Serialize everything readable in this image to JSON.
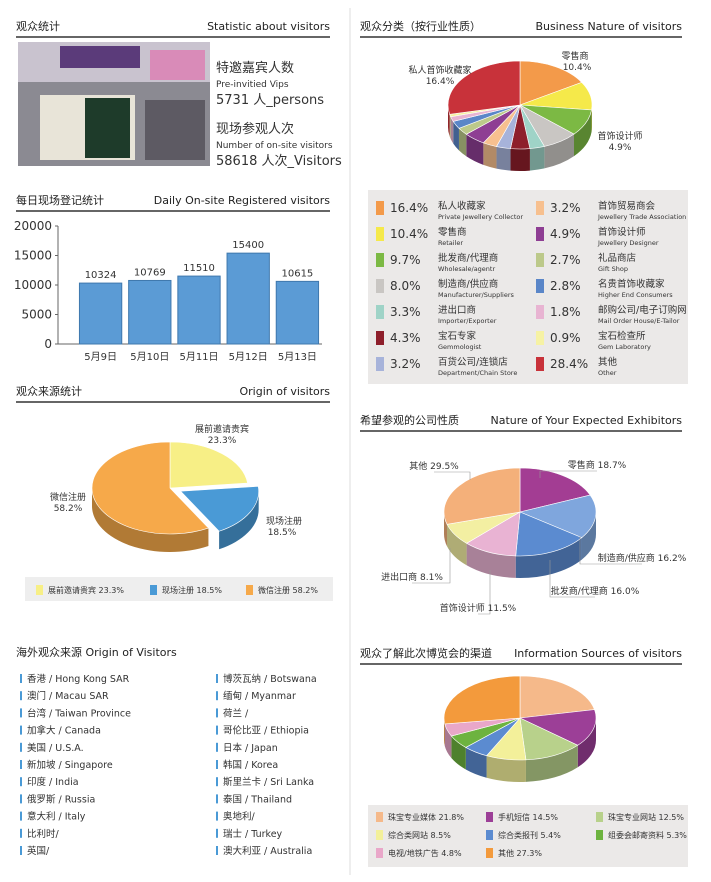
{
  "panels": {
    "visitors": {
      "title": "观众统计",
      "title_en": "Statistic about visitors",
      "vip_label": "特邀嘉宾人数",
      "vip_label_en": "Pre-invitied Vips",
      "vip_count": "5731 人_persons",
      "onsite_label": "现场参观人次",
      "onsite_label_en": "Number of on-site visitors",
      "onsite_count": "58618 人次_Visitors"
    },
    "overseas": {
      "title": "海外观众来源 Origin of Visitors",
      "countries_left": [
        "香港 / Hong Kong SAR",
        "澳门 / Macau SAR",
        "台湾 / Taiwan Province",
        "加拿大 / Canada",
        "美国 / U.S.A.",
        "新加坡 / Singapore",
        "印度 / India",
        "俄罗斯 / Russia",
        "意大利 / Italy",
        "比利时/",
        "英国/"
      ],
      "countries_right": [
        "博茨瓦纳 / Botswana",
        "缅甸 / Myanmar",
        "荷兰 /",
        "哥伦比亚 / Ethiopia",
        "日本 / Japan",
        "韩国 / Korea",
        "斯里兰卡 / Sri Lanka",
        "泰国 / Thailand",
        "奥地利/",
        "瑞士 / Turkey",
        "澳大利亚 / Australia"
      ]
    }
  },
  "chart_data": [
    {
      "type": "bar",
      "title": "每日现场登记统计",
      "title_en": "Daily On-site Registered visitors",
      "categories": [
        "5月9日",
        "5月10日",
        "5月11日",
        "5月12日",
        "5月13日"
      ],
      "values": [
        10324,
        10769,
        11510,
        15400,
        10615
      ],
      "color": "#5b9bd5",
      "ylim": [
        0,
        20000
      ],
      "yticks": [
        0,
        5000,
        10000,
        15000,
        20000
      ],
      "grid": false
    },
    {
      "type": "pie",
      "title": "观众分类（按行业性质）",
      "title_en": "Business Nature of visitors",
      "categories": [
        "私人收藏家",
        "零售商",
        "批发商/代理商",
        "制造商/供应商",
        "进出口商",
        "宝石专家",
        "百货公司/连锁店",
        "首饰贸易商会",
        "首饰设计师",
        "礼品商店",
        "名贵首饰收藏家",
        "邮购公司/电子订购网",
        "宝石检查所",
        "其他"
      ],
      "categories_en": [
        "Private Jewellery Collector",
        "Retailer",
        "Wholesale/agentr",
        "Manufacturer/Suppliers",
        "Importer/Exporter",
        "Gemmologist",
        "Department/Chain Store",
        "Jewellery Trade Association",
        "Jewellery Designer",
        "Gift Shop",
        "Higher End Consumers",
        "Mail Order House/E-Tailor",
        "Gem Laboratory",
        "Other"
      ],
      "values": [
        16.4,
        10.4,
        9.7,
        8.0,
        3.3,
        4.3,
        3.2,
        3.2,
        4.9,
        2.7,
        2.8,
        1.8,
        0.9,
        28.4
      ],
      "value_labels": [
        "16.4%",
        "10.4%",
        "9.7%",
        "8.0%",
        "3.3%",
        "4.3%",
        "3.2%",
        "3.2%",
        "4.9%",
        "2.7%",
        "2.8%",
        "1.8%",
        "0.9%",
        "28.4%"
      ],
      "colors": [
        "#f39a4a",
        "#f5e94a",
        "#7cb944",
        "#c9c6c3",
        "#9fd3c7",
        "#8e1f2b",
        "#a7b3da",
        "#f7c08f",
        "#8e3e93",
        "#bcc98a",
        "#5a86c8",
        "#e8b4d2",
        "#f6f2a4",
        "#c8323a"
      ],
      "annotations": [
        "私人首饰收藏家",
        "零售商",
        "首饰设计师"
      ]
    },
    {
      "type": "pie",
      "title": "观众来源统计",
      "title_en": "Origin of visitors",
      "categories": [
        "展前邀请贵宾",
        "现场注册",
        "微信注册"
      ],
      "values": [
        23.3,
        18.5,
        58.2
      ],
      "value_labels": [
        "23.3%",
        "18.5%",
        "58.2%"
      ],
      "colors": [
        "#f7ef86",
        "#4a9ad6",
        "#f6a94a"
      ],
      "explode": [
        1
      ]
    },
    {
      "type": "pie",
      "title": "希望参观的公司性质",
      "title_en": "Nature of Your Expected Exhibitors",
      "categories": [
        "零售商",
        "制造商/供应商",
        "批发商/代理商",
        "首饰设计师",
        "进出口商",
        "其他"
      ],
      "values": [
        18.7,
        16.2,
        16.0,
        11.5,
        8.1,
        29.5
      ],
      "value_labels": [
        "18.7%",
        "16.2%",
        "16.0%",
        "11.5%",
        "8.1%",
        "29.5%"
      ],
      "colors": [
        "#a33d93",
        "#7fa6dd",
        "#5b8bd0",
        "#e9b3d3",
        "#f3efa2",
        "#f4b07a"
      ]
    },
    {
      "type": "pie",
      "title": "观众了解此次博览会的渠道",
      "title_en": "Information Sources of visitors",
      "categories": [
        "珠宝专业媒体",
        "手机短信",
        "珠宝专业网站",
        "综合类网站",
        "综合类报刊",
        "组委会邮寄资料",
        "电视/地铁广告",
        "其他"
      ],
      "values": [
        21.8,
        14.5,
        12.5,
        8.5,
        5.4,
        5.3,
        4.8,
        27.3
      ],
      "value_labels": [
        "21.8%",
        "14.5%",
        "12.5%",
        "8.5%",
        "5.4%",
        "5.3%",
        "4.8%",
        "27.3%"
      ],
      "colors": [
        "#f5b98a",
        "#9c3f97",
        "#b8d18b",
        "#f3f09a",
        "#5b8bd0",
        "#6db33f",
        "#e9a7c9",
        "#f39a3c"
      ]
    }
  ]
}
